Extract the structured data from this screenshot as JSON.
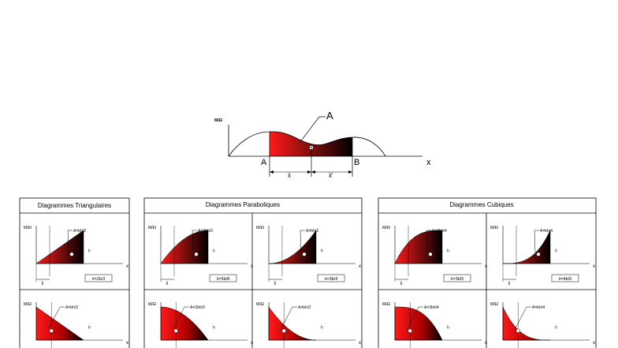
{
  "main": {
    "y_label": "M/EI",
    "x_label": "x",
    "area_label": "A",
    "point_a": "A",
    "point_b": "B",
    "xbar": "x̄",
    "xbar_right": "x̄'"
  },
  "colors": {
    "gradient_start": "#ff1a1a",
    "gradient_end": "#000000",
    "line": "#000000"
  },
  "panels": [
    {
      "title": "Diagrammes Triangulaires"
    },
    {
      "title": "Diagrammes Paraboliques"
    },
    {
      "title": "Diagrammes Cubiques"
    }
  ],
  "cells": {
    "tri_top": {
      "ylabel": "M/EI",
      "area": "A=bh/2",
      "h": "h",
      "x": "x",
      "xbar": "x̄",
      "formula": "x̄=2b/3"
    },
    "par1_top": {
      "ylabel": "M/EI",
      "area": "A=2bh/3",
      "h": "h",
      "x": "x",
      "xbar": "x̄",
      "formula": "x̄=5b/8"
    },
    "par2_top": {
      "ylabel": "M/EI",
      "area": "A=bh/3",
      "h": "h",
      "x": "x",
      "xbar": "x̄",
      "formula": "x̄=3b/4"
    },
    "cub1_top": {
      "ylabel": "M/EI",
      "area": "A=3bh/4",
      "h": "h",
      "x": "x",
      "xbar": "x̄",
      "formula": "x̄=3b/5"
    },
    "cub2_top": {
      "ylabel": "M/EI",
      "area": "A=bh/4",
      "h": "h",
      "x": "x",
      "xbar": "x̄",
      "formula": "x̄=4b/5"
    },
    "tri_bot": {
      "ylabel": "M/EI",
      "area": "A=bh/2",
      "h": "h",
      "x": "x"
    },
    "par1_bot": {
      "ylabel": "M/EI",
      "area": "A=2bh/3",
      "h": "h",
      "x": "x"
    },
    "par2_bot": {
      "ylabel": "M/EI",
      "area": "A=bh/3",
      "h": "h",
      "x": "x"
    },
    "cub1_bot": {
      "ylabel": "M/EI",
      "area": "A=3bh/4",
      "h": "h",
      "x": "x"
    },
    "cub2_bot": {
      "ylabel": "M/EI",
      "area": "A=bh/4",
      "h": "h",
      "x": "x"
    }
  }
}
